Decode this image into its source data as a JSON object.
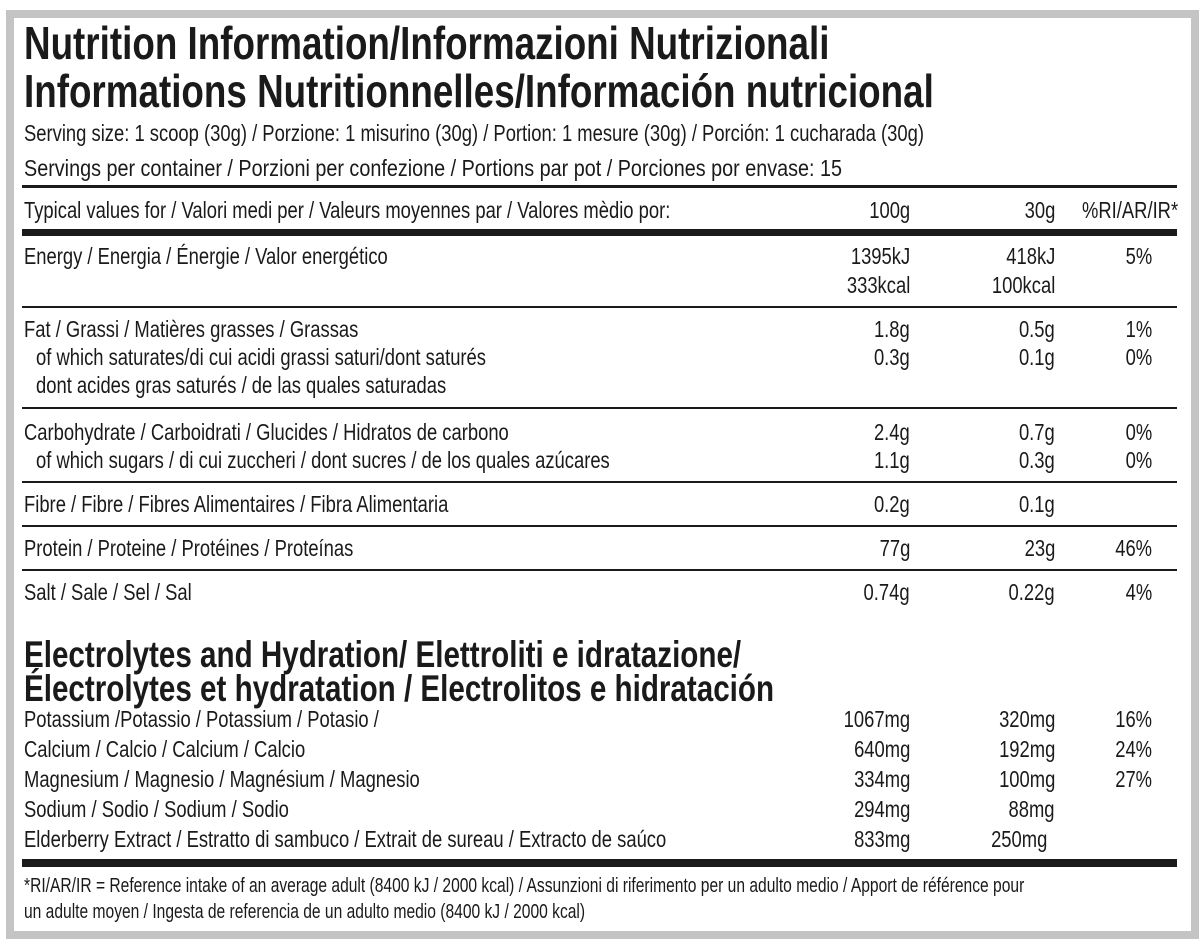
{
  "title_line1": "Nutrition Information/Informazioni Nutrizionali",
  "title_line2": "Informations Nutritionnelles/Información nutricional",
  "serving_size": "Serving size: 1 scoop (30g) / Porzione: 1 misurino (30g) / Portion: 1 mesure (30g) / Porción: 1 cucharada (30g)",
  "servings_per_container": "Servings per container / Porzioni per confezione / Portions par pot / Porciones por envase: 15",
  "header": {
    "label": "Typical values for / Valori medi per / Valeurs moyennes par / Valores mèdio por:",
    "col1": "100g",
    "col2": "30g",
    "col3": "%RI/AR/IR*"
  },
  "nutrients": [
    {
      "lines": [
        "Energy / Energia / Énergie / Valor energético"
      ],
      "v100": [
        "1395kJ",
        "333kcal"
      ],
      "v30": [
        "418kJ",
        "100kcal"
      ],
      "ri": [
        "5%"
      ]
    },
    {
      "lines": [
        "Fat / Grassi / Matières grasses / Grassas",
        " of which saturates/di cui acidi grassi saturi/dont saturés",
        " dont acides gras saturés / de las quales saturadas"
      ],
      "v100": [
        "1.8g",
        "0.3g"
      ],
      "v30": [
        "0.5g",
        "0.1g"
      ],
      "ri": [
        "1%",
        "0%"
      ]
    },
    {
      "lines": [
        "Carbohydrate / Carboidrati / Glucides / Hidratos de carbono",
        " of which sugars / di cui zuccheri / dont sucres / de los quales azúcares"
      ],
      "v100": [
        "2.4g",
        "1.1g"
      ],
      "v30": [
        "0.7g",
        "0.3g"
      ],
      "ri": [
        "0%",
        "0%"
      ]
    },
    {
      "lines": [
        "Fibre / Fibre / Fibres Alimentaires / Fibra Alimentaria"
      ],
      "v100": [
        "0.2g"
      ],
      "v30": [
        "0.1g"
      ],
      "ri": []
    },
    {
      "lines": [
        "Protein / Proteine / Protéines / Proteínas"
      ],
      "v100": [
        "77g"
      ],
      "v30": [
        "23g"
      ],
      "ri": [
        "46%"
      ]
    },
    {
      "lines": [
        "Salt / Sale / Sel / Sal"
      ],
      "v100": [
        "0.74g"
      ],
      "v30": [
        "0.22g"
      ],
      "ri": [
        "4%"
      ]
    }
  ],
  "electrolytes_title_line1": "Electrolytes and Hydration/ Elettroliti e idratazione/",
  "electrolytes_title_line2": "Électrolytes et hydratation / Electrolitos e hidratación",
  "electrolytes": [
    {
      "label": "Potassium /Potassio / Potassium / Potasio /",
      "v100": "1067mg",
      "v30": "320mg",
      "ri": "16%"
    },
    {
      "label": "Calcium / Calcio / Calcium / Calcio",
      "v100": "640mg",
      "v30": "192mg",
      "ri": "24%"
    },
    {
      "label": "Magnesium / Magnesio / Magnésium / Magnesio",
      "v100": "334mg",
      "v30": "100mg",
      "ri": "27%"
    },
    {
      "label": "Sodium / Sodio / Sodium / Sodio",
      "v100": "294mg",
      "v30": "88mg",
      "ri": ""
    },
    {
      "label": "Elderberry Extract / Estratto di sambuco / Extrait de sureau / Extracto de saúco",
      "v100": "833mg",
      "v30": "250mg",
      "ri": ""
    }
  ],
  "footnote_line1": "*RI/AR/IR = Reference intake of an average adult (8400 kJ / 2000 kcal)  / Assunzioni di riferimento per un adulto medio / Apport de référence pour",
  "footnote_line2": "un adulte moyen / Ingesta de referencia de un adulto medio (8400 kJ / 2000 kcal)"
}
